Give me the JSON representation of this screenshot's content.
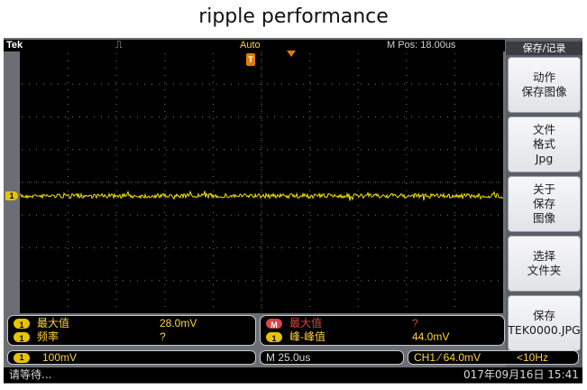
{
  "title": "ripple performance",
  "topbar": {
    "brand": "Tek",
    "trigger_symbol": "⎍",
    "mode": "Auto",
    "mpos": "M Pos: 18.00us"
  },
  "markers": {
    "channel": "1",
    "trigger": "T"
  },
  "menu": {
    "title": "保存/记录",
    "buttons": [
      "动作\n保存图像",
      "文件\n格式\nJpg",
      "关于\n保存\n图像",
      "选择\n文件夹",
      "保存\nTEK0000.JPG"
    ]
  },
  "measurements": {
    "left": {
      "row1": {
        "channel": "1",
        "label": "最大值",
        "value": "28.0mV"
      },
      "row2": {
        "channel": "1",
        "label": "频率",
        "value": "?"
      }
    },
    "right": {
      "row1": {
        "channel": "M",
        "label": "最大值",
        "value": "?"
      },
      "row2": {
        "channel": "1",
        "label": "峰-峰值",
        "value": "44.0mV"
      }
    }
  },
  "settings": {
    "ch_scale_channel": "1",
    "ch_scale": "100mV",
    "timebase": "M 25.0us",
    "trigger": "CH1 ⁄ 64.0mV",
    "trigger_freq": "<10Hz"
  },
  "status": {
    "message": "请等待...",
    "datetime": "017年09月16日 15:41"
  },
  "colors": {
    "trace": "#f2e300",
    "screen": "#000000",
    "frame": "#6b6f75",
    "marker_yellow": "#e6c300",
    "trigger_orange": "#e67a00"
  }
}
